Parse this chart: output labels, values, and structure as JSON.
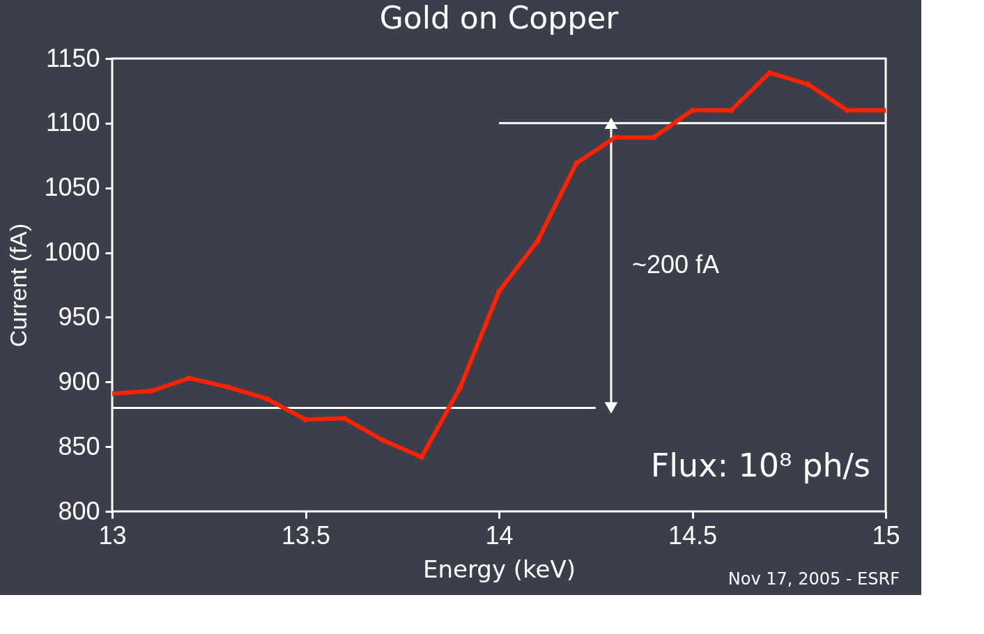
{
  "chart_data": {
    "type": "line",
    "title": "Gold on Copper",
    "xlabel": "Energy (keV)",
    "ylabel": "Current (fA)",
    "xlim": [
      13,
      15
    ],
    "xticks": [
      13,
      13.5,
      14,
      14.5,
      15
    ],
    "ylim": [
      800,
      1150
    ],
    "yticks": [
      800,
      850,
      900,
      950,
      1000,
      1050,
      1100,
      1150
    ],
    "grid": false,
    "marker": "circle",
    "line_style": "solid",
    "series": [
      {
        "color": "#ff2200",
        "x": [
          13,
          13.1,
          13.2,
          13.3,
          13.4,
          13.5,
          13.6,
          13.7,
          13.8,
          13.9,
          14,
          14.1,
          14.2,
          14.3,
          14.4,
          14.5,
          14.6,
          14.7,
          14.8,
          14.9,
          15
        ],
        "values": [
          891,
          893,
          903,
          896,
          887,
          871,
          872,
          855,
          842,
          896,
          970,
          1009,
          1069,
          1089,
          1089,
          1110,
          1110,
          1139,
          1130,
          1110,
          1110
        ]
      },
      {
        "type": "line",
        "color": "#ffffff",
        "marker": "none",
        "x": [
          14,
          15
        ],
        "values": [
          1100,
          1100
        ]
      },
      {
        "type": "line",
        "color": "#ffffff",
        "marker": "none",
        "x": [
          13,
          14.25
        ],
        "values": [
          880,
          880
        ]
      },
      {
        "type": "line",
        "color": "#ffffff",
        "marker": "triangle",
        "x": [
          14.29,
          14.29
        ],
        "values": [
          880,
          1100
        ]
      }
    ],
    "annotations": [
      "~200 fA",
      "Flux: 10⁸ ph/s",
      "Nov 17, 2005 - ESRF"
    ]
  }
}
